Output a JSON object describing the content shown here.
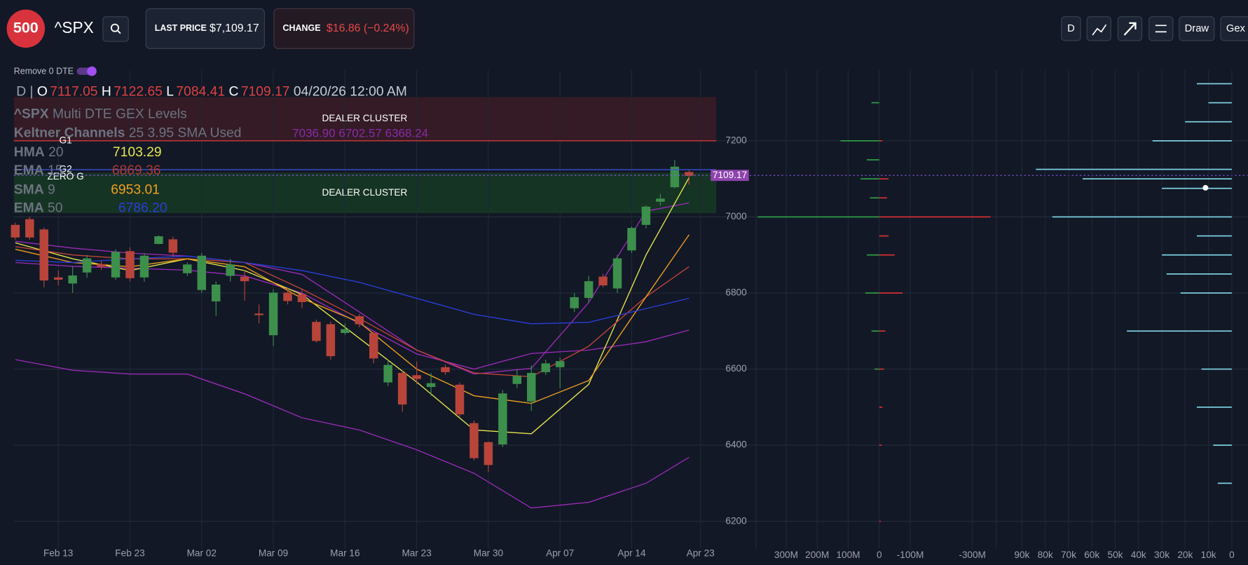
{
  "header": {
    "logo": "500",
    "symbol": "^SPX",
    "last_price_label": "LAST PRICE",
    "last_price": "$7,109.17",
    "change_label": "CHANGE",
    "change": "$16.86 (−0.24%)",
    "buttons": [
      "D",
      "Draw",
      "Gex"
    ],
    "toggle": "Remove 0 DTE"
  },
  "chart_data": [
    {
      "type": "candlestick",
      "period": "D |",
      "ohlc_letters": [
        "O",
        "H",
        "L",
        "C"
      ],
      "date_label": "04/20/26 12:00 AM",
      "legend_title": "Multi DTE GEX Levels",
      "up_color": "#3d8f4c",
      "down_color": "#b8443a",
      "open": [
        6978,
        6993,
        6966,
        6840,
        6826,
        6855,
        6875,
        6842,
        6909,
        6842,
        6930,
        6940,
        6853,
        6809,
        6779,
        6846,
        6842,
        6745,
        6690,
        6800,
        6796,
        6723,
        6717,
        6696,
        6738,
        6694,
        6566,
        6589,
        6583,
        6554,
        6604,
        6558,
        6457,
        6407,
        6403,
        6562,
        6516,
        6593,
        6606,
        6761,
        6788,
        6842,
        6813,
        6913,
        6980,
        7041,
        7079,
        7117.05
      ],
      "high": [
        6985,
        7000,
        6972,
        6860,
        6870,
        6900,
        6885,
        6915,
        6920,
        6905,
        6952,
        6948,
        6880,
        6905,
        6830,
        6890,
        6860,
        6770,
        6810,
        6815,
        6810,
        6730,
        6725,
        6720,
        6745,
        6700,
        6625,
        6595,
        6620,
        6590,
        6612,
        6565,
        6465,
        6410,
        6545,
        6600,
        6610,
        6625,
        6630,
        6800,
        6845,
        6850,
        6900,
        6975,
        7030,
        7060,
        7150,
        7122.65
      ],
      "low": [
        6940,
        6940,
        6815,
        6820,
        6800,
        6840,
        6860,
        6835,
        6830,
        6830,
        6928,
        6895,
        6845,
        6800,
        6740,
        6830,
        6780,
        6720,
        6660,
        6770,
        6760,
        6670,
        6625,
        6690,
        6710,
        6615,
        6555,
        6488,
        6560,
        6530,
        6585,
        6475,
        6360,
        6330,
        6395,
        6550,
        6490,
        6585,
        6550,
        6750,
        6775,
        6815,
        6800,
        6905,
        6970,
        7030,
        7075,
        7084.41
      ],
      "close": [
        6947,
        6947,
        6834,
        6836,
        6845,
        6890,
        6870,
        6907,
        6840,
        6897,
        6948,
        6907,
        6874,
        6897,
        6821,
        6874,
        6832,
        6744,
        6800,
        6780,
        6777,
        6675,
        6635,
        6704,
        6719,
        6629,
        6610,
        6508,
        6575,
        6562,
        6593,
        6482,
        6367,
        6349,
        6535,
        6581,
        6589,
        6614,
        6620,
        6788,
        6830,
        6821,
        6890,
        6970,
        7026,
        7047,
        7131,
        7109.17
      ],
      "xlim": [
        -0.1,
        48.9
      ],
      "xticks": [
        {
          "value": 3,
          "label": "Feb 13"
        },
        {
          "value": 8,
          "label": "Feb 23"
        },
        {
          "value": 13,
          "label": "Mar 02"
        },
        {
          "value": 18,
          "label": "Mar 09"
        },
        {
          "value": 23,
          "label": "Mar 16"
        },
        {
          "value": 28,
          "label": "Mar 23"
        },
        {
          "value": 33,
          "label": "Mar 30"
        },
        {
          "value": 38,
          "label": "Apr 07"
        },
        {
          "value": 43,
          "label": "Apr 14"
        },
        {
          "value": 47.8,
          "label": "Apr 23"
        }
      ],
      "ylim": [
        6127,
        7386
      ],
      "yticks": [
        6200,
        6400,
        6600,
        6800,
        7000,
        7200
      ],
      "zones": [
        {
          "label": "DEALER CLUSTER",
          "range": [
            7315,
            7200
          ],
          "color": "#3b1c27"
        },
        {
          "label": "DEALER CLUSTER",
          "range": [
            7116,
            7010
          ],
          "color": "#173a25"
        }
      ],
      "levels": [
        {
          "label": "G1",
          "value": 7200,
          "color": "#d23a3a"
        },
        {
          "label": "G2",
          "value": 7124,
          "color": "#3a52d6"
        },
        {
          "label": "ZERO G",
          "value": 7105
        }
      ],
      "indicators": [
        {
          "name": "Keltner Channels",
          "params": "25 3.95 SMA Used",
          "value_label": "7036.90 6702.57 6368.24",
          "color": "#9a2ab8",
          "x": [
            0,
            4,
            8,
            12,
            16,
            20,
            24,
            28,
            32,
            36,
            40,
            44,
            47
          ],
          "upper": [
            6936,
            6918,
            6905,
            6897,
            6880,
            6849,
            6750,
            6650,
            6587,
            6602,
            6775,
            7015,
            7036.9
          ],
          "middle": [
            6880,
            6870,
            6865,
            6860,
            6845,
            6800,
            6720,
            6640,
            6600,
            6641,
            6650,
            6672,
            6702.57
          ],
          "lower": [
            6625,
            6597,
            6587,
            6587,
            6535,
            6472,
            6440,
            6388,
            6326,
            6235,
            6250,
            6300,
            6368.24
          ]
        },
        {
          "name": "HMA",
          "params": "20",
          "color": "#e6e64a",
          "x": [
            0,
            4,
            8,
            12,
            16,
            20,
            24,
            28,
            32,
            36,
            40,
            44,
            47
          ],
          "values": [
            6932,
            6890,
            6859,
            6890,
            6859,
            6796,
            6681,
            6566,
            6440,
            6430,
            6560,
            6900,
            7103.29
          ]
        },
        {
          "name": "EMA",
          "params": "15",
          "color": "#c0443a",
          "x": [
            0,
            4,
            8,
            12,
            16,
            20,
            24,
            28,
            32,
            36,
            40,
            44,
            47
          ],
          "values": [
            6922,
            6900,
            6890,
            6890,
            6880,
            6810,
            6733,
            6650,
            6590,
            6580,
            6660,
            6790,
            6869.36
          ]
        },
        {
          "name": "SMA",
          "params": "9",
          "color": "#f0a020",
          "x": [
            0,
            4,
            8,
            12,
            16,
            20,
            24,
            28,
            32,
            36,
            40,
            44,
            47
          ],
          "values": [
            6915,
            6880,
            6869,
            6890,
            6869,
            6786,
            6723,
            6600,
            6530,
            6510,
            6570,
            6790,
            6953.01
          ]
        },
        {
          "name": "EMA",
          "params": "50",
          "value_label": "6786.20",
          "color": "#2a3ed8",
          "x": [
            0,
            4,
            8,
            12,
            16,
            20,
            24,
            28,
            32,
            36,
            40,
            44,
            47
          ],
          "values": [
            6886,
            6880,
            6890,
            6897,
            6880,
            6859,
            6828,
            6786,
            6744,
            6719,
            6723,
            6759,
            6786.2
          ]
        }
      ]
    },
    {
      "type": "bar",
      "orientation": "horizontal",
      "xlim": [
        397,
        -372
      ],
      "xticks": [
        {
          "value": 300,
          "label": "300M"
        },
        {
          "value": 200,
          "label": "200M"
        },
        {
          "value": 100,
          "label": "100M"
        },
        0,
        {
          "value": -100,
          "label": "-100M"
        },
        {
          "value": -300,
          "label": "-300M"
        }
      ],
      "series": [
        {
          "color": "#2ea043",
          "strikes": [
            7300,
            7200,
            7150,
            7100,
            7050,
            7000,
            6900,
            6800,
            6700,
            6600
          ],
          "values": [
            25,
            125,
            40,
            60,
            30,
            392,
            40,
            45,
            25,
            15
          ]
        },
        {
          "color": "#d93030",
          "strikes": [
            7200,
            7100,
            7050,
            7000,
            6950,
            6900,
            6800,
            6700,
            6600,
            6500,
            6400,
            6200
          ],
          "values": [
            -10,
            -30,
            -25,
            -359,
            -30,
            -50,
            -75,
            -20,
            -15,
            -10,
            -8,
            -5
          ]
        }
      ]
    },
    {
      "type": "bar",
      "orientation": "horizontal",
      "xlim": [
        101000,
        -6800
      ],
      "xticks": [
        {
          "value": 90000,
          "label": "90k"
        },
        {
          "value": 80000,
          "label": "80k"
        },
        {
          "value": 70000,
          "label": "70k"
        },
        {
          "value": 60000,
          "label": "60k"
        },
        {
          "value": 50000,
          "label": "50k"
        },
        {
          "value": 40000,
          "label": "40k"
        },
        {
          "value": 30000,
          "label": "30k"
        },
        {
          "value": 20000,
          "label": "20k"
        },
        {
          "value": 10000,
          "label": "10k"
        },
        0
      ],
      "series": [
        {
          "color": "#7fd3e6",
          "strikes": [
            7350,
            7300,
            7250,
            7200,
            7125,
            7100,
            7075,
            7000,
            6950,
            6900,
            6850,
            6800,
            6700,
            6600,
            6500,
            6400,
            6300
          ],
          "values": [
            15000,
            10000,
            20000,
            34000,
            84000,
            64000,
            30000,
            77000,
            15000,
            30000,
            28000,
            22000,
            45000,
            13000,
            15000,
            8000,
            6000
          ]
        }
      ]
    }
  ]
}
